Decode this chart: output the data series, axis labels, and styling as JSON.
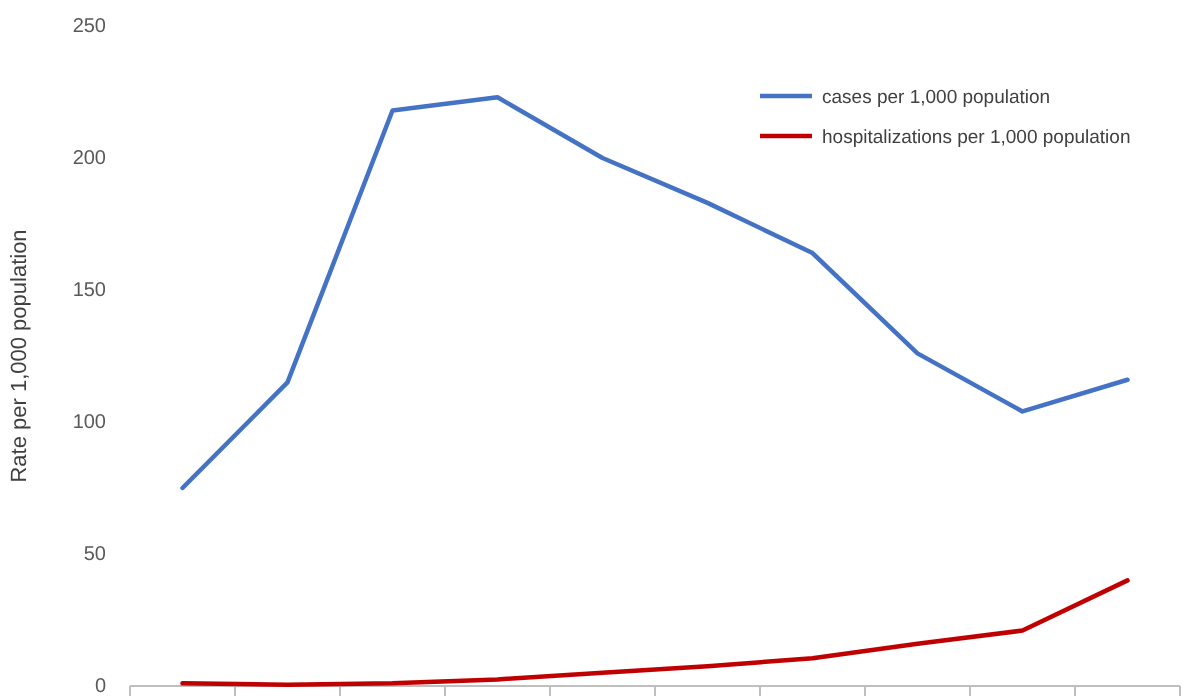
{
  "chart_data": {
    "type": "line",
    "ylabel": "Rate per 1,000 population",
    "categories": [
      null,
      null,
      null,
      null,
      null,
      null,
      null,
      null,
      null,
      null
    ],
    "ylim": [
      0,
      250
    ],
    "yticks": [
      0,
      50,
      100,
      150,
      200,
      250
    ],
    "grid": false,
    "legend": "top right",
    "marker": "none",
    "line_style": "solid",
    "series": [
      {
        "name": "cases per 1,000 population",
        "color": "#4472c4",
        "values": [
          75,
          115,
          218,
          223,
          200,
          183,
          164,
          126,
          104,
          116
        ]
      },
      {
        "name": "hospitalizations per 1,000 population",
        "color": "#c00000",
        "values": [
          1,
          0.5,
          1,
          2.5,
          5,
          7.5,
          10.5,
          16,
          21,
          40
        ]
      }
    ]
  }
}
